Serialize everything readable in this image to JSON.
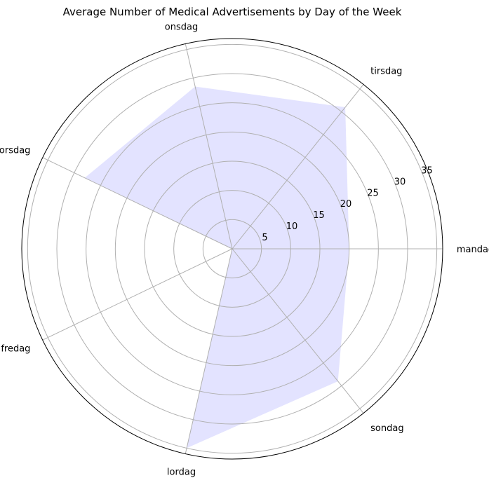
{
  "chart_data": {
    "type": "radar",
    "title": "Average Number of Medical Advertisements by Day of the Week",
    "categories": [
      "mandag",
      "tirsdag",
      "onsdag",
      "torsdag",
      "fredag",
      "lordag",
      "sondag"
    ],
    "values": [
      20,
      31,
      28.5,
      28,
      0,
      35,
      29
    ],
    "radial_ticks": [
      5,
      10,
      15,
      20,
      25,
      30,
      35
    ],
    "rlim": [
      0,
      36
    ],
    "fill_color": "#e3e3ff",
    "grid": true
  }
}
